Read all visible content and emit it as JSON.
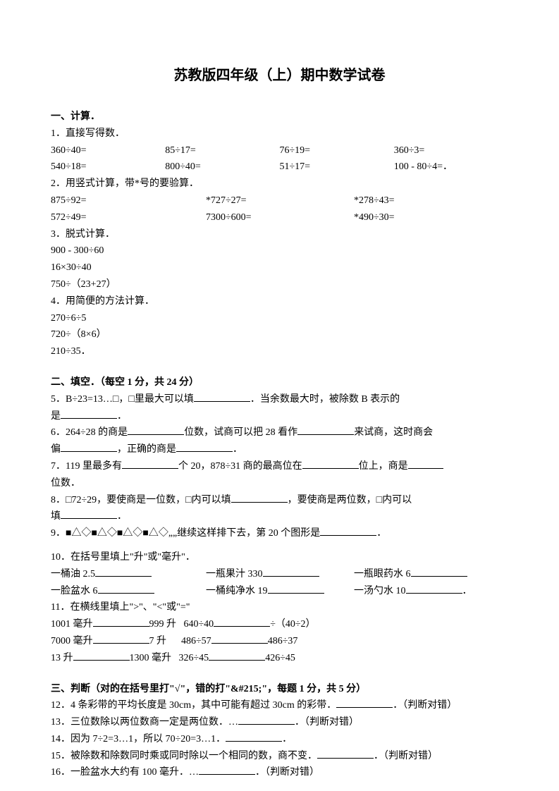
{
  "title": "苏教版四年级（上）期中数学试卷",
  "s1": {
    "header": "一、计算．",
    "q1": {
      "label": "1．直接写得数．",
      "row1": [
        "360÷40=",
        "85÷17=",
        "76÷19=",
        "360÷3="
      ],
      "row2": [
        "540÷18=",
        "800÷40=",
        "51÷17=",
        "100 - 80÷4=．"
      ]
    },
    "q2": {
      "label": "2．用竖式计算，带*号的要验算．",
      "row1": [
        "875÷92=",
        "*727÷27=",
        "*278÷43="
      ],
      "row2": [
        "572÷49=",
        "7300÷600=",
        "*490÷30="
      ]
    },
    "q3": {
      "label": "3．脱式计算．",
      "lines": [
        "900 - 300÷60",
        "16×30÷40",
        "750÷（23+27）"
      ]
    },
    "q4": {
      "label": "4．用简便的方法计算．",
      "lines": [
        "270÷6÷5",
        "720÷（8×6）",
        "210÷35．"
      ]
    }
  },
  "s2": {
    "header": "二、填空．（每空 1 分，共 24 分）",
    "q5a": "5．B÷23=13…□，□里最大可以填",
    "q5b": "．当余数最大时，被除数 B 表示的",
    "q5c": "是",
    "q5d": "．",
    "q6a": "6．264÷28 的商是",
    "q6b": "位数，试商可以把 28 看作",
    "q6c": "来试商，这时商会",
    "q6d": "偏",
    "q6e": "，正确的商是",
    "q6f": "．",
    "q7a": "7．119 里最多有",
    "q7b": "个 20，878÷31 商的最高位在",
    "q7c": "位上，商是",
    "q7d": "位数．",
    "q8a": "8．□72÷29，要使商是一位数，□内可以填",
    "q8b": "，要使商是两位数，□内可以",
    "q8c": "填",
    "q8d": "．",
    "q9a": "9．■△◇■△◇■△◇■△◇„„继续这样排下去，第 20 个图形是",
    "q9b": "．",
    "q10": "10．在括号里填上\"升\"或\"毫升\"．",
    "q10r1": [
      "一桶油 2.5",
      "一瓶果汁 330",
      "一瓶眼药水 6"
    ],
    "q10r2": [
      "一脸盆水 6",
      "一桶纯净水 19",
      "一汤勺水 10"
    ],
    "q11": "11．在横线里填上\">\"、\"<\"或\"=\"",
    "q11r1a": "1001 毫升",
    "q11r1b": "999 升",
    "q11r1c": "640÷40",
    "q11r1d": "÷（40÷2）",
    "q11r2a": "7000 毫升",
    "q11r2b": "7 升",
    "q11r2c": "486÷57",
    "q11r2d": "486÷37",
    "q11r3a": "13 升",
    "q11r3b": "1300 毫升",
    "q11r3c": "326÷45",
    "q11r3d": "426÷45"
  },
  "s3": {
    "header": "三、判断（对的在括号里打\"√\"，错的打\"&#215;\"，每题 1 分，共 5 分）",
    "q12a": "12．4 条彩带的平均长度是 30cm，其中可能有超过 30cm 的彩带．",
    "q12b": "．（判断对错）",
    "q13a": "13．三位数除以两位数商一定是两位数．…",
    "q13b": "．（判断对错）",
    "q14a": "14．因为 7÷2=3…1，所以 70÷20=3…1．",
    "q14b": "．",
    "q15a": "15．被除数和除数同时乘或同时除以一个相同的数，商不变．",
    "q15b": "．（判断对错）",
    "q16a": "16．一脸盆水大约有 100 毫升．…",
    "q16b": "．（判断对错）"
  }
}
